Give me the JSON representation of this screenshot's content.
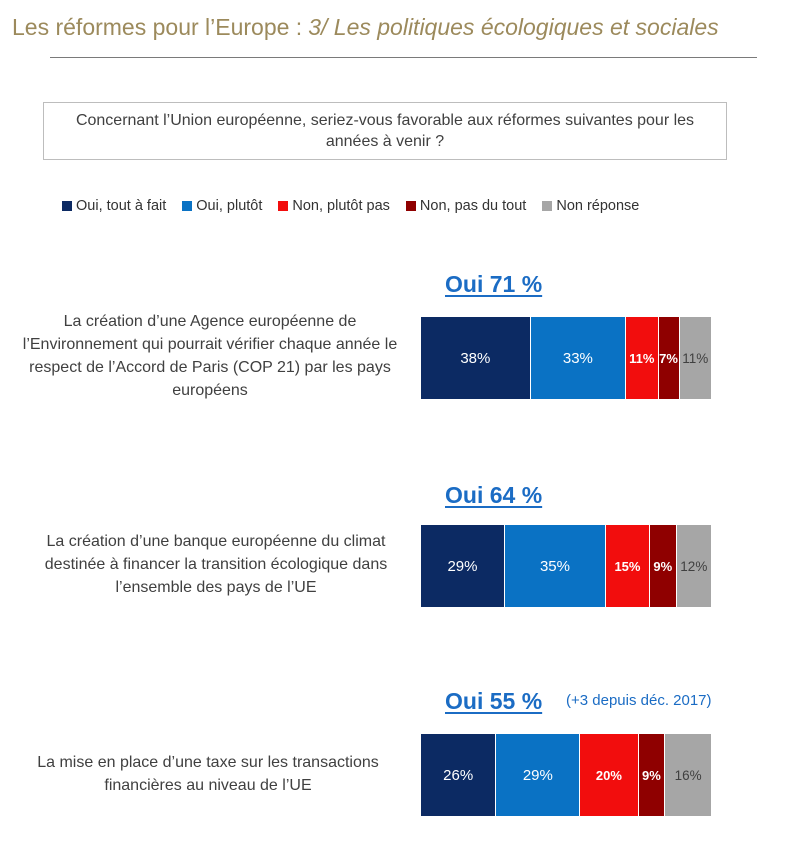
{
  "header": {
    "title": "Les réformes pour l’Europe :",
    "subtitle": "3/ Les politiques écologiques et sociales"
  },
  "question": "Concernant l’Union européenne, seriez-vous favorable aux réformes suivantes pour les années à venir ?",
  "colors": {
    "oui_tout_a_fait": "#0c2a63",
    "oui_plutot": "#0a72c4",
    "non_plutot_pas": "#f20d0d",
    "non_pas_du_tout": "#8f0000",
    "non_reponse": "#a6a6a6",
    "accent": "#1b6cc4",
    "title": "#9c8a5c"
  },
  "legend": [
    "Oui, tout à fait",
    "Oui, plutôt",
    "Non, plutôt pas",
    "Non, pas du tout",
    "Non réponse"
  ],
  "rows": [
    {
      "oui_total": "Oui 71 %",
      "note": "",
      "label": "La création d’une Agence européenne de l’Environnement qui pourrait vérifier chaque année le respect de l’Accord de Paris (COP 21) par les pays européens",
      "value_labels": [
        "38%",
        "33%",
        "11%",
        "7%",
        "11%"
      ]
    },
    {
      "oui_total": "Oui 64 %",
      "note": "",
      "label": "La création d’une banque européenne du climat destinée à financer la transition écologique dans l’ensemble des pays de l’UE",
      "value_labels": [
        "29%",
        "35%",
        "15%",
        "9%",
        "12%"
      ]
    },
    {
      "oui_total": "Oui 55 %",
      "note": "(+3 depuis déc. 2017)",
      "label": "La mise en place d’une taxe sur les transactions financières au niveau de l’UE",
      "value_labels": [
        "26%",
        "29%",
        "20%",
        "9%",
        "16%"
      ]
    }
  ],
  "chart_data": {
    "type": "bar",
    "orientation": "horizontal",
    "stacked": true,
    "categories": [
      "La création d’une Agence européenne de l’Environnement qui pourrait vérifier chaque année le respect de l’Accord de Paris (COP 21) par les pays européens",
      "La création d’une banque européenne du climat destinée à financer la transition écologique dans l’ensemble des pays de l’UE",
      "La mise en place d’une taxe sur les transactions financières au niveau de l’UE"
    ],
    "series": [
      {
        "name": "Oui, tout à fait",
        "values": [
          38,
          29,
          26
        ]
      },
      {
        "name": "Oui, plutôt",
        "values": [
          33,
          35,
          29
        ]
      },
      {
        "name": "Non, plutôt pas",
        "values": [
          11,
          15,
          20
        ]
      },
      {
        "name": "Non, pas du tout",
        "values": [
          7,
          9,
          9
        ]
      },
      {
        "name": "Non réponse",
        "values": [
          11,
          12,
          16
        ]
      }
    ],
    "oui_totals": [
      71,
      64,
      55
    ],
    "legend_position": "top",
    "grid": false
  }
}
